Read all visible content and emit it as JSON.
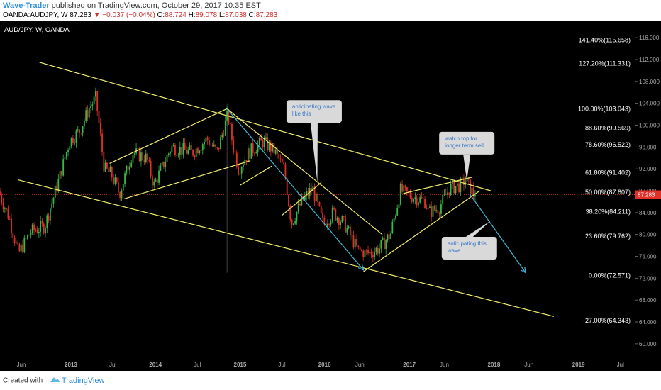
{
  "header": {
    "author": "Wave-Trader",
    "published_text": " published on TradingView.com, October 29, 2017 10:35 EST",
    "symbol": "OANDA:AUDJPY, W",
    "last_price": "87.283",
    "change": "−0.037 (−0.04%)",
    "open_label": "O:",
    "open": "88.724",
    "high_label": "H:",
    "high": "89.078",
    "low_label": "L:",
    "low": "87.038",
    "close_label": "C:",
    "close": "87.283"
  },
  "footer": {
    "created_with": "Created with",
    "brand": "TradingView"
  },
  "chart_data": {
    "type": "candlestick",
    "symbol_label": "AUD/JPY, W, OANDA",
    "x_tick_labels": [
      "Jun",
      "2013",
      "Jul",
      "2014",
      "Jul",
      "2015",
      "Jul",
      "2016",
      "Jun",
      "2017",
      "Jun",
      "2018",
      "Jun",
      "2019",
      "Jul"
    ],
    "x_tick_dates": [
      "2012-06",
      "2013-01",
      "2013-07",
      "2014-01",
      "2014-07",
      "2015-01",
      "2015-07",
      "2016-01",
      "2016-06",
      "2017-01",
      "2017-06",
      "2018-01",
      "2018-06",
      "2019-01",
      "2019-07"
    ],
    "y_ticks": [
      116.0,
      112.0,
      108.0,
      104.0,
      100.0,
      96.0,
      92.0,
      88.0,
      84.0,
      80.0,
      76.0,
      72.0,
      68.0,
      64.0,
      60.0
    ],
    "y_tick_labels": [
      "116.000",
      "112.000",
      "108.000",
      "104.000",
      "100.000",
      "96.000",
      "92.000",
      "88.000",
      "84.000",
      "80.000",
      "76.000",
      "72.000",
      "68.000",
      "64.000",
      "60.000"
    ],
    "ylim": [
      57,
      119
    ],
    "xlim": [
      "2012-03-15",
      "2019-09-15"
    ],
    "last_price_label": "87.283",
    "last_price": 87.283,
    "colors": {
      "up": "#3cb54a",
      "down": "#e0302a",
      "trend": "#f2ee6a",
      "arrow": "#3fb6d6",
      "callout": "#d9d9d9",
      "callout_text": "#3a78c8",
      "fib_text": "#ffffff",
      "last_price": "#e0302a",
      "background": "#000000"
    },
    "fib_levels": [
      {
        "label": "141.40%(115.658)",
        "value": 115.658
      },
      {
        "label": "127.20%(111.331)",
        "value": 111.331
      },
      {
        "label": "100.00%(103.043)",
        "value": 103.043
      },
      {
        "label": "88.60%(99.569)",
        "value": 99.569
      },
      {
        "label": "78.60%(96.522)",
        "value": 96.522
      },
      {
        "label": "61.80%(91.402)",
        "value": 91.402
      },
      {
        "label": "50.00%(87.807)",
        "value": 87.807
      },
      {
        "label": "38.20%(84.211)",
        "value": 84.211
      },
      {
        "label": "23.60%(79.762)",
        "value": 79.762
      },
      {
        "label": "0.00%(72.571)",
        "value": 72.571
      },
      {
        "label": "-27.00%(64.343)",
        "value": 64.343
      }
    ],
    "price_path": [
      [
        "2012-03-15",
        88.0
      ],
      [
        "2012-05-01",
        83.0
      ],
      [
        "2012-06-10",
        76.5
      ],
      [
        "2012-08-01",
        80.5
      ],
      [
        "2012-10-01",
        81.5
      ],
      [
        "2012-12-01",
        90.0
      ],
      [
        "2013-01-15",
        97.0
      ],
      [
        "2013-03-01",
        99.0
      ],
      [
        "2013-04-10",
        103.0
      ],
      [
        "2013-05-10",
        105.0
      ],
      [
        "2013-06-15",
        92.0
      ],
      [
        "2013-07-15",
        91.0
      ],
      [
        "2013-08-20",
        87.5
      ],
      [
        "2013-10-15",
        95.0
      ],
      [
        "2013-12-15",
        94.0
      ],
      [
        "2014-01-15",
        89.0
      ],
      [
        "2014-04-01",
        96.0
      ],
      [
        "2014-07-01",
        95.0
      ],
      [
        "2014-09-01",
        97.5
      ],
      [
        "2014-10-15",
        95.0
      ],
      [
        "2014-12-01",
        102.0
      ],
      [
        "2014-12-15",
        98.0
      ],
      [
        "2015-01-15",
        92.0
      ],
      [
        "2015-03-01",
        95.0
      ],
      [
        "2015-05-01",
        97.0
      ],
      [
        "2015-06-15",
        95.5
      ],
      [
        "2015-08-01",
        92.0
      ],
      [
        "2015-09-01",
        82.0
      ],
      [
        "2015-10-15",
        86.0
      ],
      [
        "2015-12-01",
        88.5
      ],
      [
        "2016-01-15",
        82.0
      ],
      [
        "2016-03-01",
        84.0
      ],
      [
        "2016-04-15",
        82.0
      ],
      [
        "2016-06-15",
        77.0
      ],
      [
        "2016-08-01",
        76.5
      ],
      [
        "2016-09-15",
        77.5
      ],
      [
        "2016-11-01",
        80.0
      ],
      [
        "2016-12-15",
        88.0
      ],
      [
        "2017-02-01",
        87.0
      ],
      [
        "2017-04-01",
        86.0
      ],
      [
        "2017-04-15",
        84.0
      ],
      [
        "2017-06-01",
        85.0
      ],
      [
        "2017-07-15",
        88.5
      ],
      [
        "2017-09-01",
        89.0
      ],
      [
        "2017-09-20",
        90.0
      ],
      [
        "2017-10-27",
        87.283
      ]
    ],
    "trend_lines": [
      {
        "from": [
          "2012-09-01",
          111.5
        ],
        "to": [
          "2018-01-01",
          88.0
        ]
      },
      {
        "from": [
          "2012-06-01",
          90.0
        ],
        "to": [
          "2018-10-01",
          65.0
        ]
      },
      {
        "from": [
          "2013-07-01",
          93.0
        ],
        "to": [
          "2014-11-20",
          103.0
        ]
      },
      {
        "from": [
          "2013-09-01",
          86.5
        ],
        "to": [
          "2015-03-01",
          93.5
        ]
      },
      {
        "from": [
          "2015-01-15",
          89.0
        ],
        "to": [
          "2015-06-01",
          92.5
        ]
      },
      {
        "from": [
          "2014-11-20",
          103.0
        ],
        "to": [
          "2016-09-20",
          80.0
        ]
      },
      {
        "from": [
          "2015-07-15",
          83.5
        ],
        "to": [
          "2016-01-01",
          89.5
        ]
      },
      {
        "from": [
          "2016-07-01",
          73.2
        ],
        "to": [
          "2017-11-15",
          88.0
        ]
      },
      {
        "from": [
          "2016-12-20",
          87.5
        ],
        "to": [
          "2017-10-15",
          90.5
        ]
      }
    ],
    "arrows": [
      {
        "from": [
          "2014-11-20",
          103.0
        ],
        "to": [
          "2016-07-01",
          73.5
        ]
      },
      {
        "from": [
          "2017-10-01",
          87.5
        ],
        "to": [
          "2018-06-01",
          73.0
        ]
      }
    ],
    "callouts": [
      {
        "text": "anticipating wave like this",
        "box_date": "2015-12-01",
        "box_price": 102.5,
        "tip": [
          "2015-12-15",
          89.5
        ]
      },
      {
        "text": "watch top for longer term sell",
        "box_date": "2017-09-20",
        "box_price": 96.7,
        "tip": [
          "2017-09-20",
          89.8
        ]
      },
      {
        "text": "anticipating this wave",
        "box_date": "2017-10-01",
        "box_price": 77.5,
        "tip": [
          "2018-01-01",
          82.5
        ]
      }
    ],
    "crosshair_date": "2014-11-20"
  }
}
